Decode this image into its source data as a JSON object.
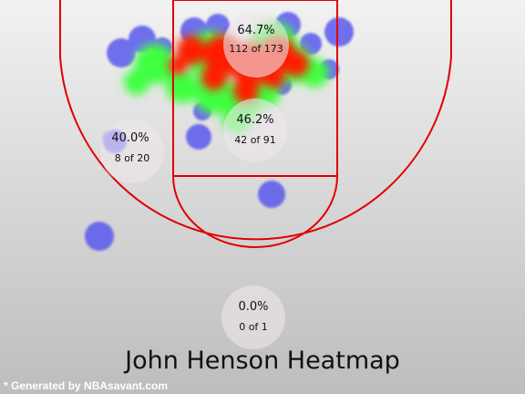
{
  "colors": {
    "background_top": "#f2f2f2",
    "background_bottom": "#bdbdbd",
    "court_lines": "#e00000",
    "zone_circle": "#ece6ec",
    "heat_cold": "#5a5aee",
    "heat_warm": "#40ff40",
    "heat_hot": "#ff1a00"
  },
  "chart_data": {
    "type": "heatmap",
    "title": "John Henson Heatmap",
    "credit": "* Generated by NBAsavant.com",
    "zones": [
      {
        "zone": "restricted-area",
        "pct": "64.7%",
        "made": 112,
        "attempts": 173,
        "label": "112 of 173"
      },
      {
        "zone": "paint-non-ra",
        "pct": "46.2%",
        "made": 42,
        "attempts": 91,
        "label": "42 of 91"
      },
      {
        "zone": "left-mid-range",
        "pct": "40.0%",
        "made": 8,
        "attempts": 20,
        "label": "8 of 20"
      },
      {
        "zone": "backcourt",
        "pct": "0.0%",
        "made": 0,
        "attempts": 1,
        "label": "0 of 1"
      }
    ]
  }
}
